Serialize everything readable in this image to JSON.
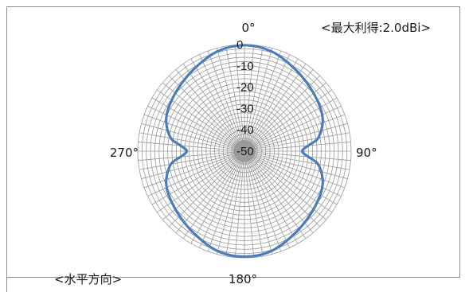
{
  "chart_data": {
    "type": "polar",
    "annotations": {
      "max_gain": "<最大利得:2.0dBi>",
      "plane": "<水平方向>"
    },
    "angle_labels": [
      "0°",
      "90°",
      "180°",
      "270°"
    ],
    "radial_ticks": [
      "0",
      "-10",
      "-20",
      "-30",
      "-40",
      "-50"
    ],
    "r_range_db": [
      -50,
      0
    ],
    "radial_grid_step_db": 2,
    "angular_grid_step_deg": 5,
    "grid": true,
    "series_color": "#4a7ebb",
    "series": [
      {
        "angles_deg": [
          0,
          15,
          30,
          45,
          60,
          70,
          80,
          85,
          90,
          95,
          100,
          110,
          120,
          135,
          150,
          165,
          180,
          195,
          210,
          225,
          240,
          250,
          260,
          265,
          270,
          275,
          280,
          290,
          300,
          315,
          330,
          345
        ],
        "values_db": [
          -0.3,
          -1.5,
          -4.5,
          -7,
          -9,
          -11,
          -15,
          -20,
          -23,
          -20,
          -15,
          -11,
          -9,
          -7,
          -4.5,
          -1.5,
          -0.5,
          -1.5,
          -4.5,
          -7,
          -9,
          -11,
          -15,
          -20,
          -23,
          -20,
          -15,
          -11,
          -9,
          -7,
          -4.5,
          -1.5
        ]
      }
    ]
  }
}
